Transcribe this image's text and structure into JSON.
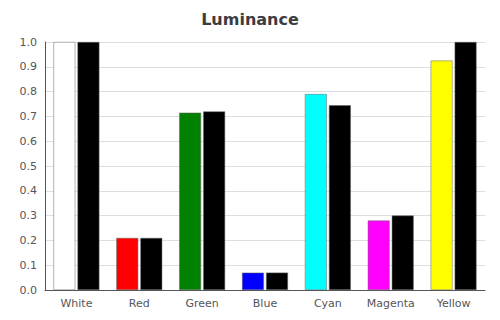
{
  "chart_data": {
    "type": "bar",
    "title": "Luminance",
    "categories": [
      "White",
      "Red",
      "Green",
      "Blue",
      "Cyan",
      "Magenta",
      "Yellow"
    ],
    "series": [
      {
        "colors": [
          "#ffffff",
          "#ff0000",
          "#008000",
          "#0000ff",
          "#00ffff",
          "#ff00ff",
          "#ffff00"
        ],
        "values": [
          1.0,
          0.21,
          0.715,
          0.07,
          0.79,
          0.28,
          0.925
        ]
      },
      {
        "color": "#000000",
        "values": [
          1.0,
          0.21,
          0.72,
          0.07,
          0.745,
          0.3,
          1.0
        ]
      }
    ],
    "ylim": [
      0.0,
      1.0
    ],
    "yticks": [
      {
        "value": 0,
        "label": "0.0"
      },
      0.1,
      0.2,
      0.3,
      0.4,
      0.5,
      0.6,
      0.7,
      0.8,
      0.9,
      {
        "value": 1,
        "label": "1.0"
      }
    ],
    "grid": true
  }
}
